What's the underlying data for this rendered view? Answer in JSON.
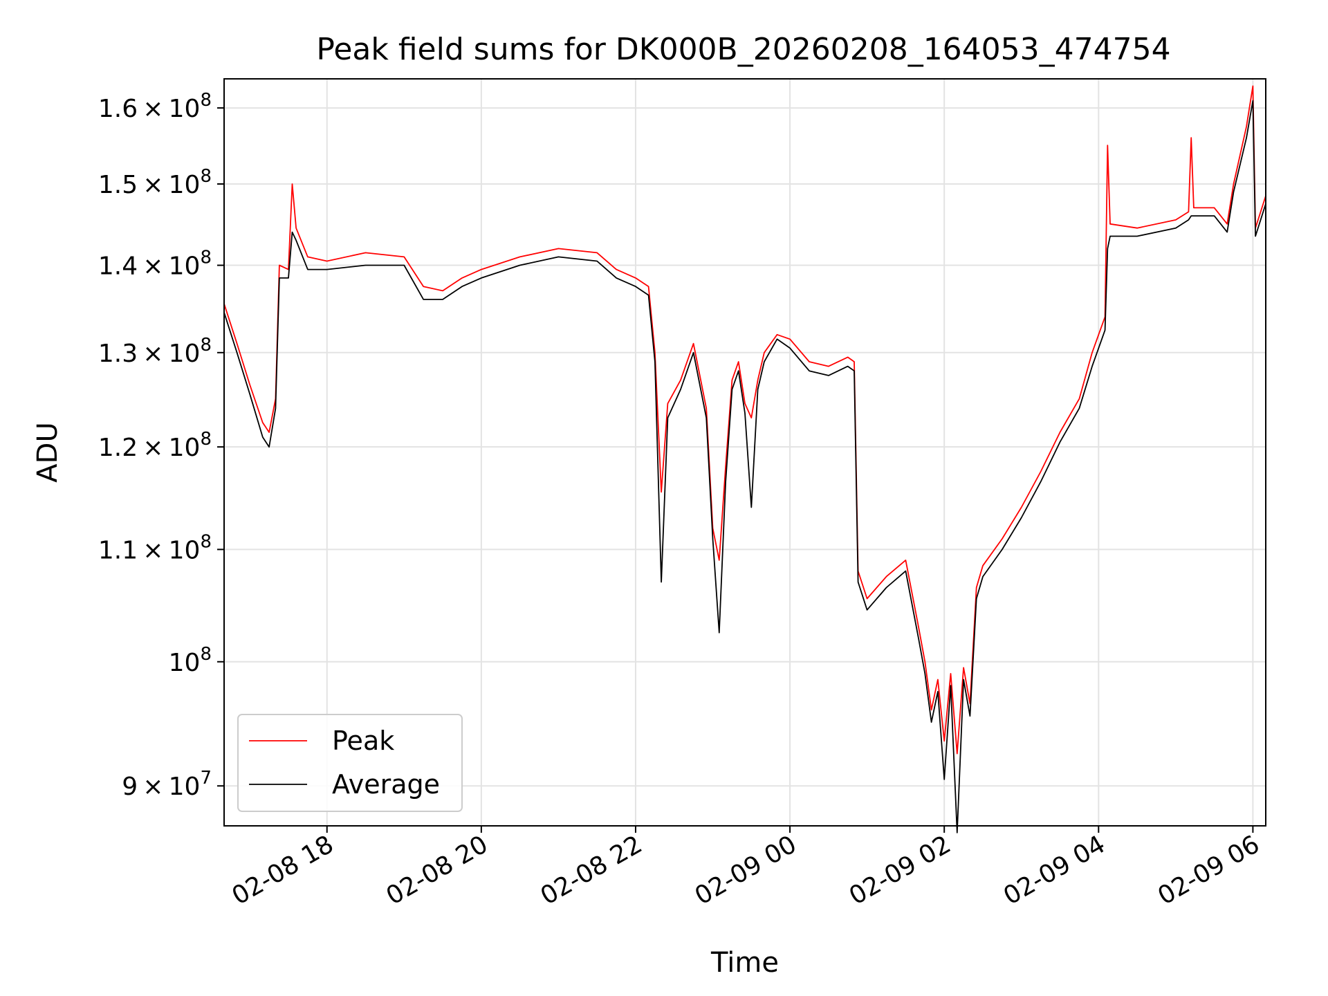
{
  "chart_data": {
    "type": "line",
    "title": "Peak field sums for DK000B_20260208_164053_474754",
    "xlabel": "Time",
    "ylabel": "ADU",
    "y_scale": "log",
    "ylim": [
      87000000,
      164000000
    ],
    "xlim": [
      "2026-02-08 16:40",
      "2026-02-09 06:10"
    ],
    "grid": true,
    "legend_position": "lower-left",
    "x_ticks": [
      {
        "value": "2026-02-08 18:00",
        "label": "02-08 18"
      },
      {
        "value": "2026-02-08 20:00",
        "label": "02-08 20"
      },
      {
        "value": "2026-02-08 22:00",
        "label": "02-08 22"
      },
      {
        "value": "2026-02-09 00:00",
        "label": "02-09 00"
      },
      {
        "value": "2026-02-09 02:00",
        "label": "02-09 02"
      },
      {
        "value": "2026-02-09 04:00",
        "label": "02-09 04"
      },
      {
        "value": "2026-02-09 06:00",
        "label": "02-09 06"
      }
    ],
    "y_ticks": [
      {
        "value": 90000000,
        "mantissa": "9",
        "exponent": "7"
      },
      {
        "value": 100000000,
        "mantissa": "",
        "exponent": "8"
      },
      {
        "value": 110000000,
        "mantissa": "1.1",
        "exponent": "8"
      },
      {
        "value": 120000000,
        "mantissa": "1.2",
        "exponent": "8"
      },
      {
        "value": 130000000,
        "mantissa": "1.3",
        "exponent": "8"
      },
      {
        "value": 140000000,
        "mantissa": "1.4",
        "exponent": "8"
      },
      {
        "value": 150000000,
        "mantissa": "1.5",
        "exponent": "8"
      },
      {
        "value": 160000000,
        "mantissa": "1.6",
        "exponent": "8"
      }
    ],
    "series": [
      {
        "name": "Peak",
        "color": "#ff0000",
        "points": [
          [
            "2026-02-08 16:40",
            135500000
          ],
          [
            "2026-02-08 16:50",
            131000000
          ],
          [
            "2026-02-08 17:00",
            126500000
          ],
          [
            "2026-02-08 17:10",
            122500000
          ],
          [
            "2026-02-08 17:15",
            121500000
          ],
          [
            "2026-02-08 17:20",
            125000000
          ],
          [
            "2026-02-08 17:23",
            140000000
          ],
          [
            "2026-02-08 17:30",
            139500000
          ],
          [
            "2026-02-08 17:33",
            150000000
          ],
          [
            "2026-02-08 17:36",
            144500000
          ],
          [
            "2026-02-08 17:45",
            141000000
          ],
          [
            "2026-02-08 18:00",
            140500000
          ],
          [
            "2026-02-08 18:30",
            141500000
          ],
          [
            "2026-02-08 19:00",
            141000000
          ],
          [
            "2026-02-08 19:15",
            137500000
          ],
          [
            "2026-02-08 19:30",
            137000000
          ],
          [
            "2026-02-08 19:45",
            138500000
          ],
          [
            "2026-02-08 20:00",
            139500000
          ],
          [
            "2026-02-08 20:30",
            141000000
          ],
          [
            "2026-02-08 21:00",
            142000000
          ],
          [
            "2026-02-08 21:30",
            141500000
          ],
          [
            "2026-02-08 21:45",
            139500000
          ],
          [
            "2026-02-08 22:00",
            138500000
          ],
          [
            "2026-02-08 22:10",
            137500000
          ],
          [
            "2026-02-08 22:15",
            130000000
          ],
          [
            "2026-02-08 22:20",
            115500000
          ],
          [
            "2026-02-08 22:25",
            124500000
          ],
          [
            "2026-02-08 22:35",
            127000000
          ],
          [
            "2026-02-08 22:45",
            131000000
          ],
          [
            "2026-02-08 22:55",
            124000000
          ],
          [
            "2026-02-08 23:00",
            112000000
          ],
          [
            "2026-02-08 23:05",
            109000000
          ],
          [
            "2026-02-08 23:10",
            118000000
          ],
          [
            "2026-02-08 23:15",
            127000000
          ],
          [
            "2026-02-08 23:20",
            129000000
          ],
          [
            "2026-02-08 23:25",
            124500000
          ],
          [
            "2026-02-08 23:30",
            123000000
          ],
          [
            "2026-02-08 23:35",
            127000000
          ],
          [
            "2026-02-08 23:40",
            130000000
          ],
          [
            "2026-02-08 23:50",
            132000000
          ],
          [
            "2026-02-09 00:00",
            131500000
          ],
          [
            "2026-02-09 00:15",
            129000000
          ],
          [
            "2026-02-09 00:30",
            128500000
          ],
          [
            "2026-02-09 00:45",
            129500000
          ],
          [
            "2026-02-09 00:50",
            129000000
          ],
          [
            "2026-02-09 00:53",
            108000000
          ],
          [
            "2026-02-09 01:00",
            105500000
          ],
          [
            "2026-02-09 01:15",
            107500000
          ],
          [
            "2026-02-09 01:30",
            109000000
          ],
          [
            "2026-02-09 01:40",
            103000000
          ],
          [
            "2026-02-09 01:45",
            100000000
          ],
          [
            "2026-02-09 01:50",
            96000000
          ],
          [
            "2026-02-09 01:55",
            98500000
          ],
          [
            "2026-02-09 02:00",
            93500000
          ],
          [
            "2026-02-09 02:05",
            99000000
          ],
          [
            "2026-02-09 02:10",
            92500000
          ],
          [
            "2026-02-09 02:15",
            99500000
          ],
          [
            "2026-02-09 02:20",
            96500000
          ],
          [
            "2026-02-09 02:25",
            106500000
          ],
          [
            "2026-02-09 02:30",
            108500000
          ],
          [
            "2026-02-09 02:45",
            111000000
          ],
          [
            "2026-02-09 03:00",
            114000000
          ],
          [
            "2026-02-09 03:15",
            117500000
          ],
          [
            "2026-02-09 03:30",
            121500000
          ],
          [
            "2026-02-09 03:45",
            125000000
          ],
          [
            "2026-02-09 03:55",
            130000000
          ],
          [
            "2026-02-09 04:05",
            134000000
          ],
          [
            "2026-02-09 04:07",
            155000000
          ],
          [
            "2026-02-09 04:09",
            145000000
          ],
          [
            "2026-02-09 04:30",
            144500000
          ],
          [
            "2026-02-09 05:00",
            145500000
          ],
          [
            "2026-02-09 05:10",
            146500000
          ],
          [
            "2026-02-09 05:12",
            156000000
          ],
          [
            "2026-02-09 05:14",
            147000000
          ],
          [
            "2026-02-09 05:30",
            147000000
          ],
          [
            "2026-02-09 05:40",
            145000000
          ],
          [
            "2026-02-09 05:45",
            150000000
          ],
          [
            "2026-02-09 05:55",
            157500000
          ],
          [
            "2026-02-09 06:00",
            163000000
          ],
          [
            "2026-02-09 06:02",
            144500000
          ],
          [
            "2026-02-09 06:10",
            148500000
          ]
        ]
      },
      {
        "name": "Average",
        "color": "#000000",
        "points": [
          [
            "2026-02-08 16:40",
            134500000
          ],
          [
            "2026-02-08 16:50",
            130000000
          ],
          [
            "2026-02-08 17:00",
            125500000
          ],
          [
            "2026-02-08 17:10",
            121000000
          ],
          [
            "2026-02-08 17:15",
            120000000
          ],
          [
            "2026-02-08 17:20",
            124000000
          ],
          [
            "2026-02-08 17:23",
            138500000
          ],
          [
            "2026-02-08 17:30",
            138500000
          ],
          [
            "2026-02-08 17:33",
            144000000
          ],
          [
            "2026-02-08 17:36",
            143000000
          ],
          [
            "2026-02-08 17:45",
            139500000
          ],
          [
            "2026-02-08 18:00",
            139500000
          ],
          [
            "2026-02-08 18:30",
            140000000
          ],
          [
            "2026-02-08 19:00",
            140000000
          ],
          [
            "2026-02-08 19:15",
            136000000
          ],
          [
            "2026-02-08 19:30",
            136000000
          ],
          [
            "2026-02-08 19:45",
            137500000
          ],
          [
            "2026-02-08 20:00",
            138500000
          ],
          [
            "2026-02-08 20:30",
            140000000
          ],
          [
            "2026-02-08 21:00",
            141000000
          ],
          [
            "2026-02-08 21:30",
            140500000
          ],
          [
            "2026-02-08 21:45",
            138500000
          ],
          [
            "2026-02-08 22:00",
            137500000
          ],
          [
            "2026-02-08 22:10",
            136500000
          ],
          [
            "2026-02-08 22:15",
            129000000
          ],
          [
            "2026-02-08 22:20",
            107000000
          ],
          [
            "2026-02-08 22:25",
            123000000
          ],
          [
            "2026-02-08 22:35",
            126000000
          ],
          [
            "2026-02-08 22:45",
            130000000
          ],
          [
            "2026-02-08 22:55",
            123000000
          ],
          [
            "2026-02-08 23:00",
            111000000
          ],
          [
            "2026-02-08 23:05",
            102500000
          ],
          [
            "2026-02-08 23:10",
            116500000
          ],
          [
            "2026-02-08 23:15",
            126000000
          ],
          [
            "2026-02-08 23:20",
            128000000
          ],
          [
            "2026-02-08 23:25",
            123500000
          ],
          [
            "2026-02-08 23:30",
            114000000
          ],
          [
            "2026-02-08 23:35",
            126000000
          ],
          [
            "2026-02-08 23:40",
            129000000
          ],
          [
            "2026-02-08 23:50",
            131500000
          ],
          [
            "2026-02-09 00:00",
            130500000
          ],
          [
            "2026-02-09 00:15",
            128000000
          ],
          [
            "2026-02-09 00:30",
            127500000
          ],
          [
            "2026-02-09 00:45",
            128500000
          ],
          [
            "2026-02-09 00:50",
            128000000
          ],
          [
            "2026-02-09 00:53",
            107000000
          ],
          [
            "2026-02-09 01:00",
            104500000
          ],
          [
            "2026-02-09 01:15",
            106500000
          ],
          [
            "2026-02-09 01:30",
            108000000
          ],
          [
            "2026-02-09 01:40",
            102000000
          ],
          [
            "2026-02-09 01:45",
            99000000
          ],
          [
            "2026-02-09 01:50",
            95000000
          ],
          [
            "2026-02-09 01:55",
            97500000
          ],
          [
            "2026-02-09 02:00",
            90500000
          ],
          [
            "2026-02-09 02:05",
            98000000
          ],
          [
            "2026-02-09 02:10",
            86500000
          ],
          [
            "2026-02-09 02:15",
            98500000
          ],
          [
            "2026-02-09 02:20",
            95500000
          ],
          [
            "2026-02-09 02:25",
            105500000
          ],
          [
            "2026-02-09 02:30",
            107500000
          ],
          [
            "2026-02-09 02:45",
            110000000
          ],
          [
            "2026-02-09 03:00",
            113000000
          ],
          [
            "2026-02-09 03:15",
            116500000
          ],
          [
            "2026-02-09 03:30",
            120500000
          ],
          [
            "2026-02-09 03:45",
            124000000
          ],
          [
            "2026-02-09 03:55",
            128500000
          ],
          [
            "2026-02-09 04:05",
            132500000
          ],
          [
            "2026-02-09 04:07",
            142000000
          ],
          [
            "2026-02-09 04:09",
            143500000
          ],
          [
            "2026-02-09 04:30",
            143500000
          ],
          [
            "2026-02-09 05:00",
            144500000
          ],
          [
            "2026-02-09 05:10",
            145500000
          ],
          [
            "2026-02-09 05:12",
            146000000
          ],
          [
            "2026-02-09 05:14",
            146000000
          ],
          [
            "2026-02-09 05:30",
            146000000
          ],
          [
            "2026-02-09 05:40",
            144000000
          ],
          [
            "2026-02-09 05:45",
            149000000
          ],
          [
            "2026-02-09 05:55",
            156000000
          ],
          [
            "2026-02-09 06:00",
            161000000
          ],
          [
            "2026-02-09 06:02",
            143500000
          ],
          [
            "2026-02-09 06:10",
            147500000
          ]
        ]
      }
    ]
  }
}
